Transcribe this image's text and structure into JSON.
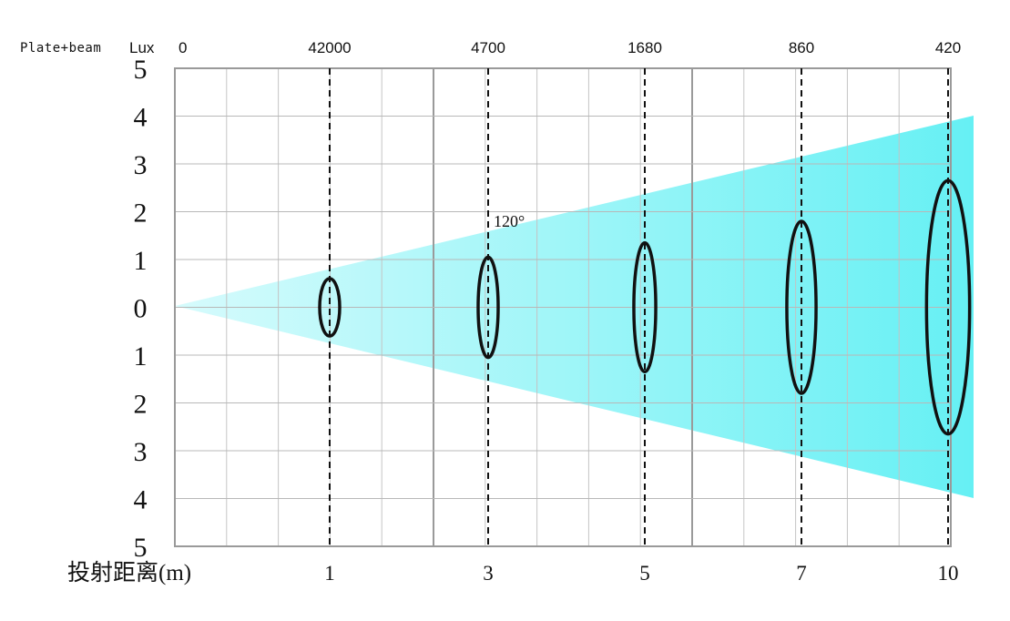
{
  "chart_data": {
    "type": "beam-diagram",
    "title_label": "Plate+beam",
    "lux_label": "Lux",
    "lux_origin": "0",
    "y_tick_labels": [
      "5",
      "4",
      "3",
      "2",
      "1",
      "0",
      "1",
      "2",
      "3",
      "4",
      "5"
    ],
    "x_axis_label": "投射距离(m)",
    "angle_label": "120°",
    "beam_color": "#66f0f4",
    "markers": [
      {
        "distance": "1",
        "lux": "42000",
        "spot_halfheight": 0.6
      },
      {
        "distance": "3",
        "lux": "4700",
        "spot_halfheight": 1.05
      },
      {
        "distance": "5",
        "lux": "1680",
        "spot_halfheight": 1.35
      },
      {
        "distance": "7",
        "lux": "860",
        "spot_halfheight": 1.8
      },
      {
        "distance": "10",
        "lux": "420",
        "spot_halfheight": 2.65
      }
    ]
  }
}
